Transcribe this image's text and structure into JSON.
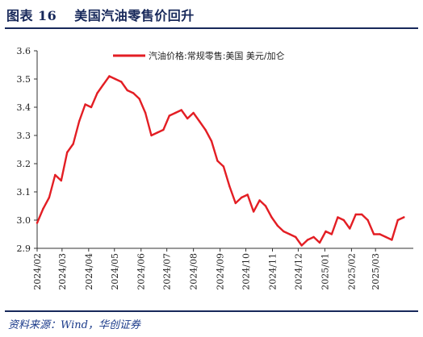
{
  "figure": {
    "label": "图表",
    "number": "16",
    "heading": "美国汽油零售价回升",
    "source": "资料来源：Wind，华创证券"
  },
  "chart_data": {
    "type": "line",
    "title": "",
    "xlabel": "",
    "ylabel": "",
    "ylim": [
      2.9,
      3.6
    ],
    "yticks": [
      "2.9",
      "3.0",
      "3.1",
      "3.2",
      "3.3",
      "3.4",
      "3.5",
      "3.6"
    ],
    "xlim": [
      "2024-02-01",
      "2025-04-14"
    ],
    "xtick_labels": [
      "2024/02",
      "2024/03",
      "2024/04",
      "2024/05",
      "2024/06",
      "2024/07",
      "2024/08",
      "2024/09",
      "2024/10",
      "2024/11",
      "2024/12",
      "2025/01",
      "2025/02",
      "2025/03"
    ],
    "grid": false,
    "legend": "top",
    "line_color": "#e31e24",
    "series": [
      {
        "name": "汽油价格:常规零售:美国 美元/加仑",
        "x": [
          "2024-02-01",
          "2024-02-08",
          "2024-02-15",
          "2024-02-22",
          "2024-02-29",
          "2024-03-07",
          "2024-03-14",
          "2024-03-21",
          "2024-03-28",
          "2024-04-04",
          "2024-04-11",
          "2024-04-18",
          "2024-04-25",
          "2024-05-02",
          "2024-05-09",
          "2024-05-16",
          "2024-05-23",
          "2024-05-30",
          "2024-06-06",
          "2024-06-13",
          "2024-06-20",
          "2024-06-27",
          "2024-07-04",
          "2024-07-11",
          "2024-07-18",
          "2024-07-25",
          "2024-08-01",
          "2024-08-08",
          "2024-08-15",
          "2024-08-22",
          "2024-08-29",
          "2024-09-05",
          "2024-09-12",
          "2024-09-19",
          "2024-09-26",
          "2024-10-03",
          "2024-10-10",
          "2024-10-17",
          "2024-10-24",
          "2024-10-31",
          "2024-11-07",
          "2024-11-14",
          "2024-11-21",
          "2024-11-28",
          "2024-12-05",
          "2024-12-12",
          "2024-12-19",
          "2024-12-26",
          "2025-01-02",
          "2025-01-09",
          "2025-01-16",
          "2025-01-23",
          "2025-01-30",
          "2025-02-06",
          "2025-02-13",
          "2025-02-20",
          "2025-02-27",
          "2025-03-06",
          "2025-03-13",
          "2025-03-20",
          "2025-03-27",
          "2025-04-03"
        ],
        "values": [
          2.99,
          3.04,
          3.08,
          3.16,
          3.14,
          3.24,
          3.27,
          3.35,
          3.41,
          3.4,
          3.45,
          3.48,
          3.51,
          3.5,
          3.49,
          3.46,
          3.45,
          3.43,
          3.38,
          3.3,
          3.31,
          3.32,
          3.37,
          3.38,
          3.39,
          3.36,
          3.38,
          3.35,
          3.32,
          3.28,
          3.21,
          3.19,
          3.12,
          3.06,
          3.08,
          3.09,
          3.03,
          3.07,
          3.05,
          3.01,
          2.98,
          2.96,
          2.95,
          2.94,
          2.91,
          2.93,
          2.94,
          2.92,
          2.96,
          2.95,
          3.01,
          3.0,
          2.97,
          3.02,
          3.02,
          3.0,
          2.95,
          2.95,
          2.94,
          2.93,
          3.0,
          3.01
        ]
      }
    ]
  }
}
